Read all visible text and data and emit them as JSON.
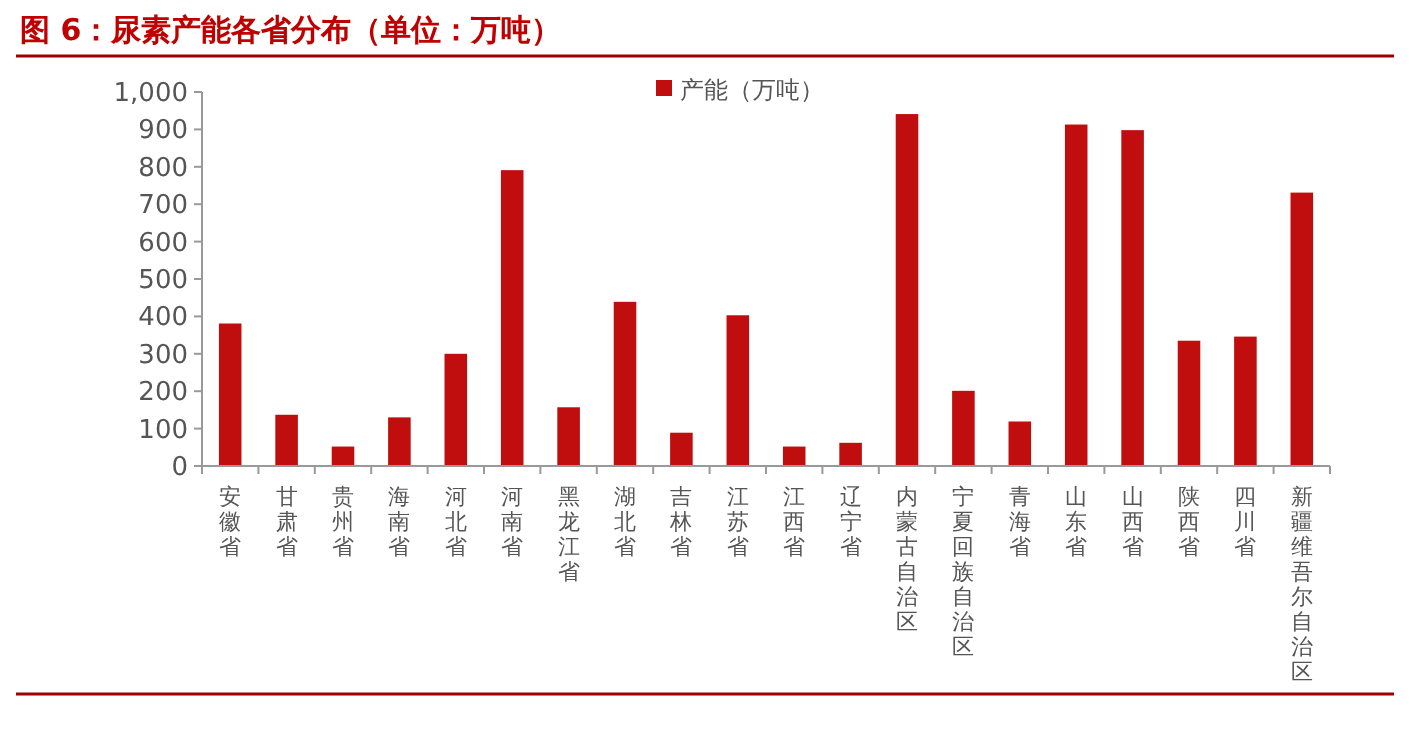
{
  "chart_data": {
    "type": "bar",
    "title": "图 6：尿素产能各省分布（单位：万吨）",
    "categories": [
      "安徽省",
      "甘肃省",
      "贵州省",
      "海南省",
      "河北省",
      "河南省",
      "黑龙江省",
      "湖北省",
      "吉林省",
      "江苏省",
      "江西省",
      "辽宁省",
      "内蒙古自治区",
      "宁夏回族自治区",
      "青海省",
      "山东省",
      "山西省",
      "陕西省",
      "四川省",
      "新疆维吾尔自治区"
    ],
    "series": [
      {
        "name": "产能（万吨）",
        "color": "#c00d0d",
        "values": [
          381,
          137,
          52,
          130,
          300,
          791,
          157,
          439,
          89,
          403,
          52,
          62,
          941,
          201,
          119,
          913,
          898,
          335,
          346,
          731
        ]
      }
    ],
    "ylim": [
      0,
      1000
    ],
    "yticks": [
      0,
      100,
      200,
      300,
      400,
      500,
      600,
      700,
      800,
      900,
      {
        "value": 1000,
        "label": "1,000"
      }
    ],
    "grid": false,
    "legend": "top"
  }
}
